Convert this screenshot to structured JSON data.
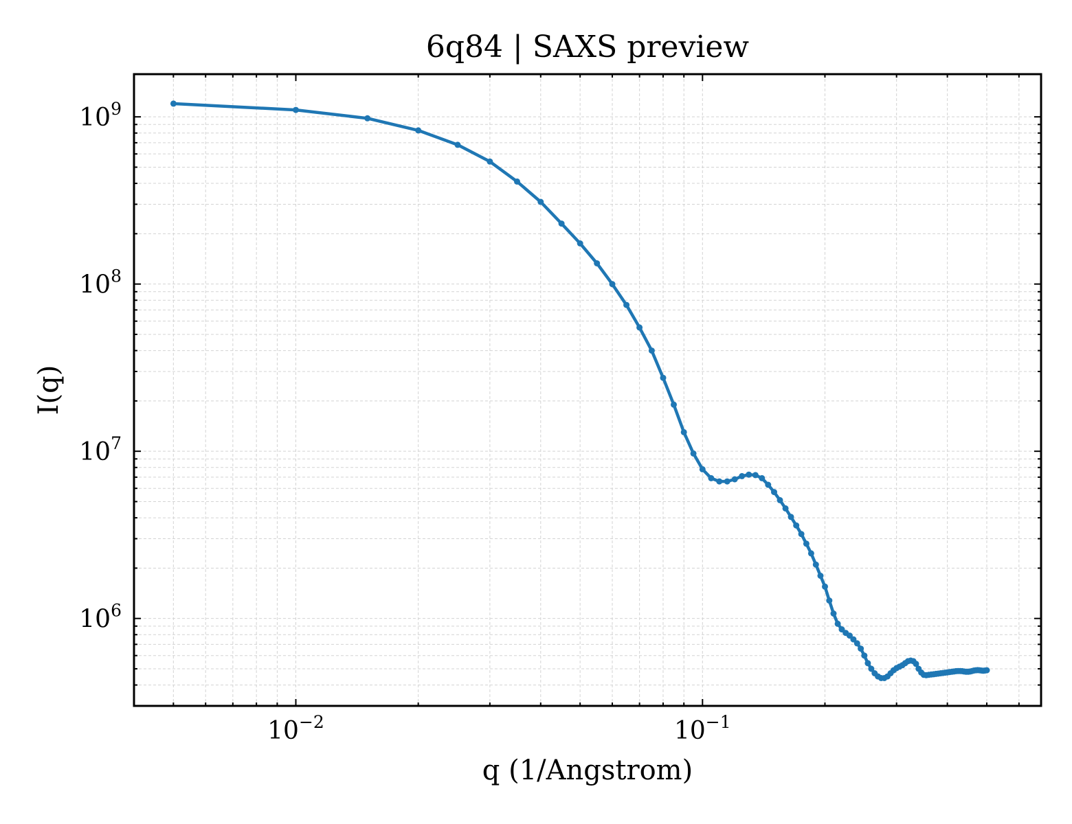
{
  "chart_data": {
    "type": "line",
    "title": "6q84 | SAXS preview",
    "xlabel": "q (1/Angstrom)",
    "ylabel": "I(q)",
    "xscale": "log",
    "yscale": "log",
    "xlim": [
      0.004,
      0.68
    ],
    "ylim": [
      300000,
      1800000000
    ],
    "grid": true,
    "x_ticks": [
      {
        "value": 0.01,
        "base": "10",
        "exp": "−2"
      },
      {
        "value": 0.1,
        "base": "10",
        "exp": "−1"
      }
    ],
    "y_ticks": [
      {
        "value": 1000000,
        "base": "10",
        "exp": "6"
      },
      {
        "value": 10000000,
        "base": "10",
        "exp": "7"
      },
      {
        "value": 100000000,
        "base": "10",
        "exp": "8"
      },
      {
        "value": 1000000000,
        "base": "10",
        "exp": "9"
      }
    ],
    "series": [
      {
        "color": "#1f77b4",
        "x": [
          0.005,
          0.01,
          0.015,
          0.02,
          0.025,
          0.03,
          0.035,
          0.04,
          0.045,
          0.05,
          0.055,
          0.06,
          0.065,
          0.07,
          0.075,
          0.08,
          0.085,
          0.09,
          0.095,
          0.1,
          0.105,
          0.11,
          0.115,
          0.12,
          0.125,
          0.13,
          0.135,
          0.14,
          0.145,
          0.15,
          0.155,
          0.16,
          0.165,
          0.17,
          0.175,
          0.18,
          0.185,
          0.19,
          0.195,
          0.2,
          0.205,
          0.21,
          0.215,
          0.22,
          0.225,
          0.23,
          0.235,
          0.24,
          0.245,
          0.25,
          0.255,
          0.26,
          0.265,
          0.27,
          0.275,
          0.28,
          0.285,
          0.29,
          0.295,
          0.3,
          0.305,
          0.31,
          0.315,
          0.32,
          0.325,
          0.33,
          0.335,
          0.34,
          0.345,
          0.35,
          0.355,
          0.36,
          0.365,
          0.37,
          0.375,
          0.38,
          0.385,
          0.39,
          0.395,
          0.4,
          0.405,
          0.41,
          0.415,
          0.42,
          0.425,
          0.43,
          0.435,
          0.44,
          0.445,
          0.45,
          0.455,
          0.46,
          0.465,
          0.47,
          0.475,
          0.48,
          0.485,
          0.49,
          0.495,
          0.5
        ],
        "y": [
          1200000000,
          1100000000,
          980000000,
          830000000,
          680000000,
          540000000,
          410000000,
          310000000,
          230000000,
          175000000,
          133000000,
          100000000,
          75000000,
          55000000,
          40000000,
          27500000,
          19000000,
          13000000,
          9700000,
          7800000,
          6900000,
          6600000,
          6600000,
          6800000,
          7100000,
          7250000,
          7200000,
          6900000,
          6300000,
          5700000,
          5100000,
          4550000,
          4050000,
          3600000,
          3200000,
          2800000,
          2450000,
          2100000,
          1800000,
          1550000,
          1280000,
          1070000,
          930000,
          860000,
          820000,
          790000,
          750000,
          710000,
          660000,
          600000,
          540000,
          500000,
          470000,
          450000,
          440000,
          440000,
          450000,
          470000,
          490000,
          505000,
          515000,
          525000,
          540000,
          555000,
          560000,
          555000,
          535000,
          500000,
          475000,
          460000,
          458000,
          460000,
          462000,
          464000,
          466000,
          468000,
          470000,
          472000,
          474000,
          476000,
          478000,
          480000,
          482000,
          484000,
          485000,
          485000,
          484000,
          482000,
          480000,
          480000,
          482000,
          485000,
          488000,
          490000,
          491000,
          490000,
          488000,
          487000,
          488000,
          490000
        ]
      }
    ]
  }
}
